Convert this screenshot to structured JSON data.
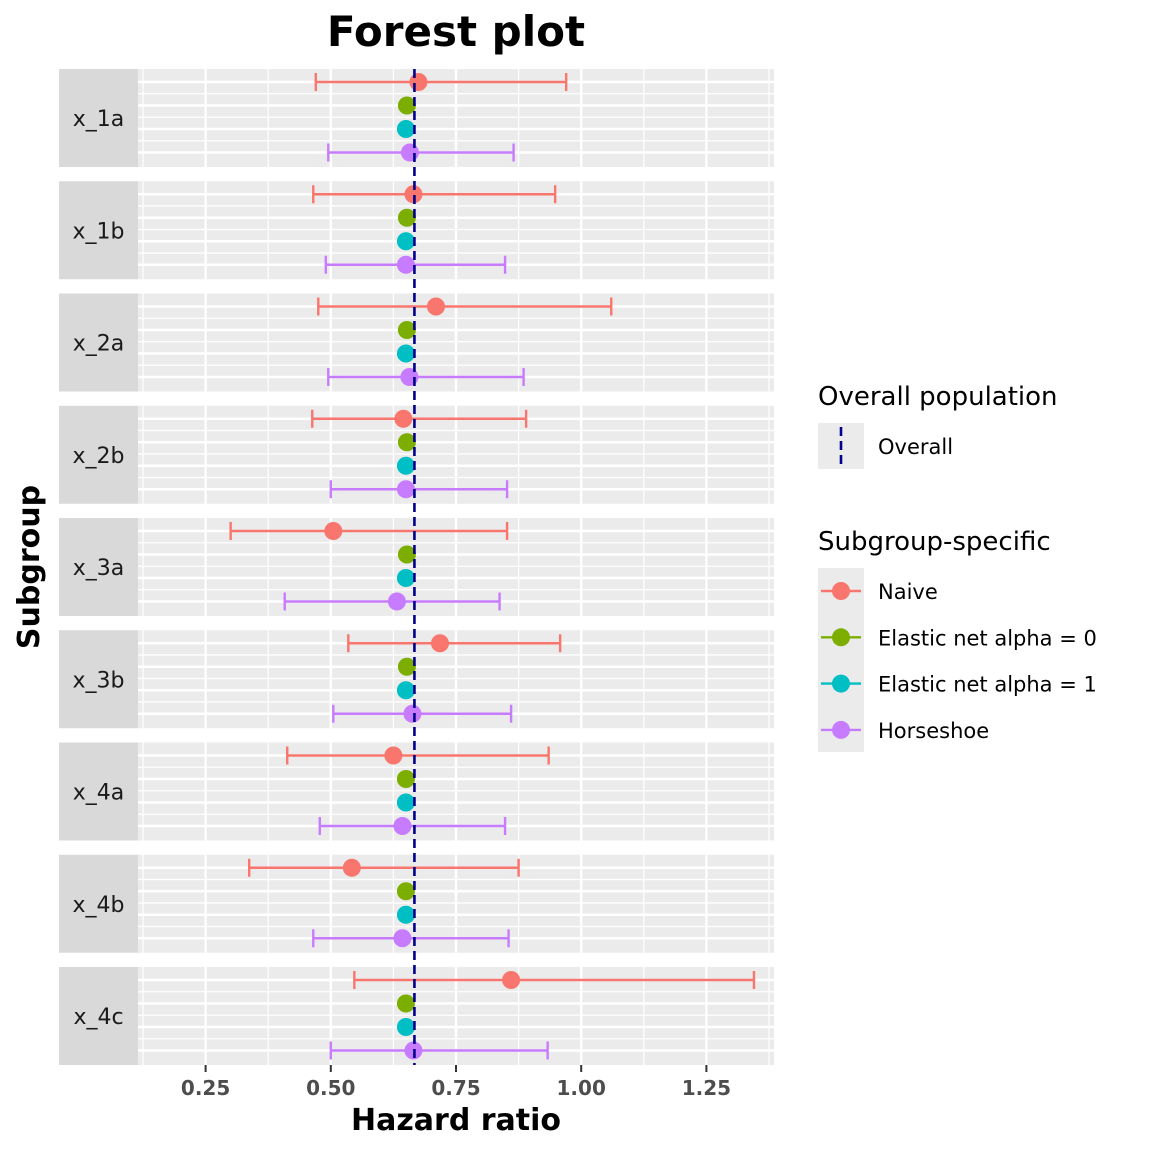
{
  "chart_data": {
    "type": "forest",
    "title": "Forest plot",
    "xlabel": "Hazard ratio",
    "ylabel": "Subgroup",
    "xlim": [
      0.115,
      1.385
    ],
    "x_ticks": [
      0.25,
      0.5,
      0.75,
      1.0,
      1.25
    ],
    "x_tick_labels": [
      "0.25",
      "0.50",
      "0.75",
      "1.00",
      "1.25"
    ],
    "grid": true,
    "overall": {
      "name": "Overall",
      "value": 0.667,
      "color": "#00008B"
    },
    "legend": {
      "position": "right",
      "overall_title": "Overall population",
      "subgroup_title": "Subgroup-specific"
    },
    "subgroups": [
      "x_1a",
      "x_1b",
      "x_2a",
      "x_2b",
      "x_3a",
      "x_3b",
      "x_4a",
      "x_4b",
      "x_4c"
    ],
    "series": [
      {
        "name": "Naive",
        "color": "#F8766D",
        "estimate": [
          0.675,
          0.665,
          0.71,
          0.645,
          0.505,
          0.718,
          0.625,
          0.542,
          0.86
        ],
        "lower": [
          0.47,
          0.465,
          0.475,
          0.463,
          0.3,
          0.535,
          0.413,
          0.337,
          0.547
        ],
        "upper": [
          0.97,
          0.948,
          1.06,
          0.89,
          0.852,
          0.958,
          0.935,
          0.875,
          1.345
        ]
      },
      {
        "name": "Elastic net alpha = 0",
        "color": "#7CAE00",
        "estimate": [
          0.652,
          0.652,
          0.652,
          0.652,
          0.652,
          0.652,
          0.65,
          0.65,
          0.65
        ],
        "lower": null,
        "upper": null
      },
      {
        "name": "Elastic net alpha = 1",
        "color": "#00BFC4",
        "estimate": [
          0.65,
          0.65,
          0.65,
          0.65,
          0.65,
          0.65,
          0.65,
          0.65,
          0.65
        ],
        "lower": null,
        "upper": null
      },
      {
        "name": "Horseshoe",
        "color": "#C77CFF",
        "estimate": [
          0.658,
          0.65,
          0.657,
          0.65,
          0.632,
          0.663,
          0.643,
          0.643,
          0.665
        ],
        "lower": [
          0.495,
          0.49,
          0.495,
          0.5,
          0.408,
          0.505,
          0.478,
          0.465,
          0.5
        ],
        "upper": [
          0.865,
          0.848,
          0.885,
          0.852,
          0.837,
          0.86,
          0.848,
          0.855,
          0.933
        ]
      }
    ]
  }
}
